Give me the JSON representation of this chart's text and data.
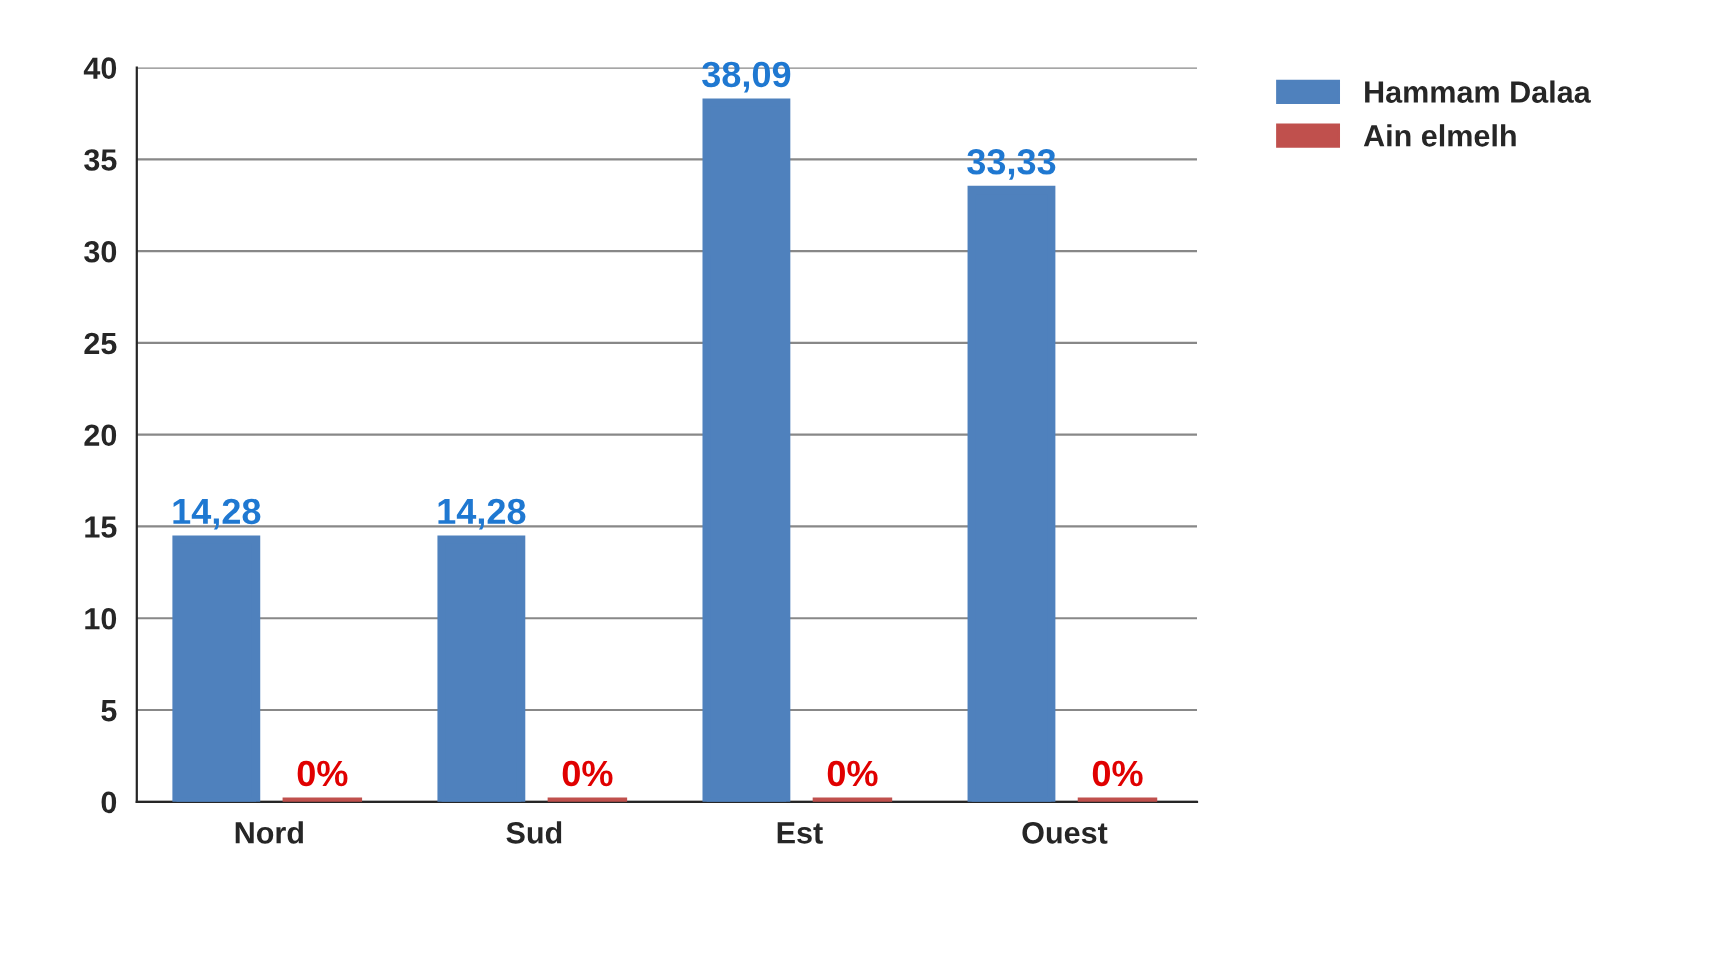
{
  "chart_data": {
    "type": "bar",
    "categories": [
      "Nord",
      "Sud",
      "Est",
      "Ouest"
    ],
    "series": [
      {
        "name": "Hammam Dalaa",
        "color": "#4f81bd",
        "values": [
          14.28,
          14.28,
          38.09,
          33.33
        ],
        "value_labels": [
          "14,28",
          "14,28",
          "38,09",
          "33,33"
        ]
      },
      {
        "name": "Ain elmelh",
        "color": "#c0504d",
        "values": [
          0,
          0,
          0,
          0
        ],
        "value_labels": [
          "0%",
          "0%",
          "0%",
          "0%"
        ]
      }
    ],
    "ylim": [
      0,
      40
    ],
    "yticks": [
      0,
      5,
      10,
      15,
      20,
      25,
      30,
      35,
      40
    ],
    "grid": "y",
    "legend": "top right"
  }
}
